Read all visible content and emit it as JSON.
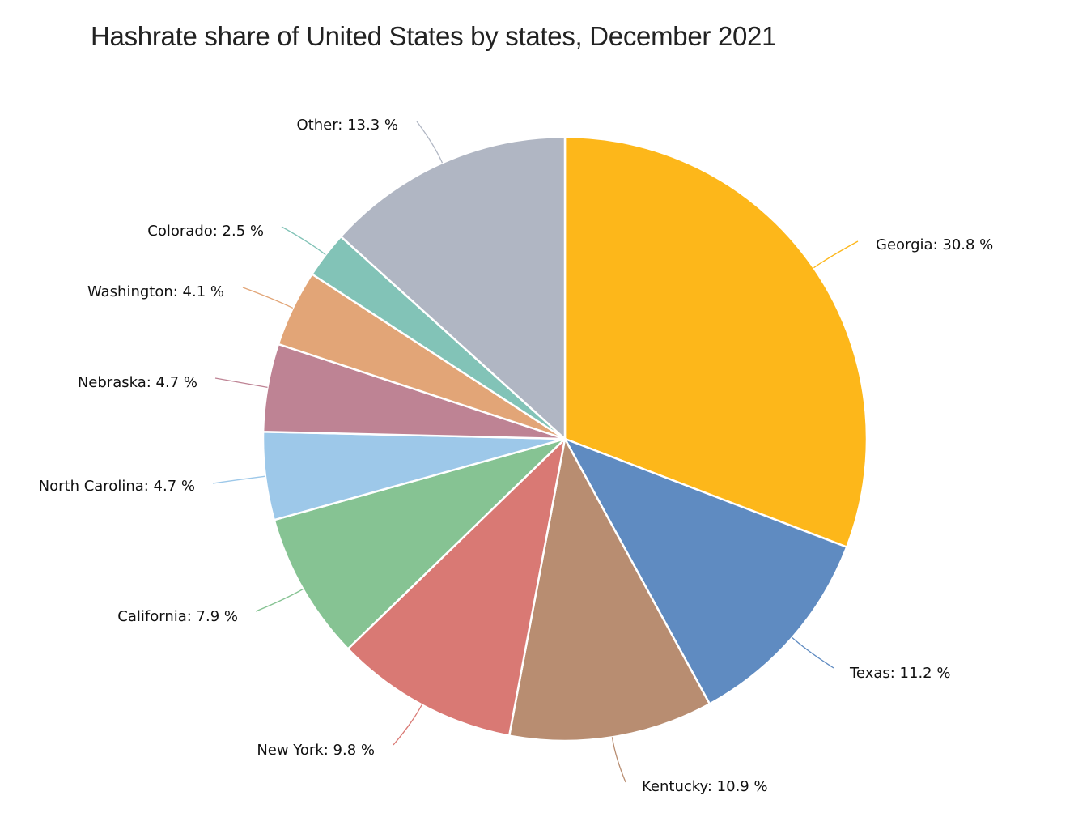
{
  "title": "Hashrate share of United States by states, December 2021",
  "chart_data": {
    "type": "pie",
    "title": "Hashrate share of United States by states, December 2021",
    "start_angle_deg": 0,
    "direction": "clockwise",
    "unit": "%",
    "slices": [
      {
        "label": "Georgia",
        "value": 30.8,
        "color": "#FDB71A",
        "text": "Georgia: 30.8 %"
      },
      {
        "label": "Texas",
        "value": 11.2,
        "color": "#5F8BC1",
        "text": "Texas: 11.2 %"
      },
      {
        "label": "Kentucky",
        "value": 10.9,
        "color": "#B88D71",
        "text": "Kentucky: 10.9 %"
      },
      {
        "label": "New York",
        "value": 9.8,
        "color": "#D97974",
        "text": "New York: 9.8 %"
      },
      {
        "label": "California",
        "value": 7.9,
        "color": "#86C393",
        "text": "California: 7.9 %"
      },
      {
        "label": "North Carolina",
        "value": 4.7,
        "color": "#9DC8E9",
        "text": "North Carolina: 4.7 %"
      },
      {
        "label": "Nebraska",
        "value": 4.7,
        "color": "#BE8394",
        "text": "Nebraska: 4.7 %"
      },
      {
        "label": "Washington",
        "value": 4.1,
        "color": "#E2A577",
        "text": "Washington: 4.1 %"
      },
      {
        "label": "Colorado",
        "value": 2.5,
        "color": "#82C3B7",
        "text": "Colorado: 2.5 %"
      },
      {
        "label": "Other",
        "value": 13.3,
        "color": "#B0B6C3",
        "text": "Other: 13.3 %"
      }
    ],
    "legend": "none (inline labels with connector lines)"
  }
}
